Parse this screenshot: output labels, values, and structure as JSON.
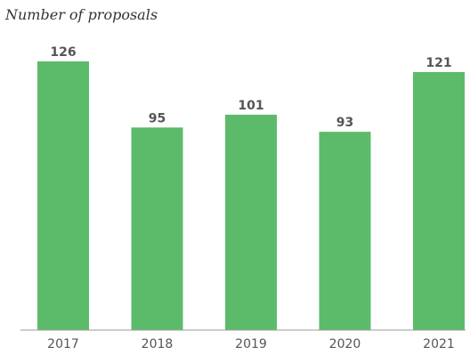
{
  "chart_data": {
    "type": "bar",
    "title": "Number of proposals",
    "categories": [
      "2017",
      "2018",
      "2019",
      "2020",
      "2021"
    ],
    "values": [
      126,
      95,
      101,
      93,
      121
    ],
    "xlabel": "",
    "ylabel": "",
    "ylim": [
      0,
      126
    ],
    "grid": false,
    "legend": "none",
    "bar_color": "#5CBB6B",
    "axis_color": "#999999",
    "label_color": "#555555"
  }
}
